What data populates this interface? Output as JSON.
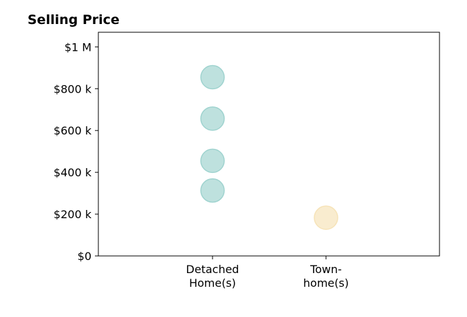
{
  "chart_data": {
    "type": "scatter",
    "title": "Selling Price",
    "xlabel": "",
    "ylabel": "",
    "categories": [
      "Detached Home(s)",
      "Town- home(s)"
    ],
    "category_lines": [
      [
        "Detached",
        "Home(s)"
      ],
      [
        "Town-",
        "home(s)"
      ]
    ],
    "ylim": [
      0,
      1070000
    ],
    "yticks": [
      {
        "value": 0,
        "label": "$0"
      },
      {
        "value": 200000,
        "label": "$200 k"
      },
      {
        "value": 400000,
        "label": "$400 k"
      },
      {
        "value": 600000,
        "label": "$600 k"
      },
      {
        "value": 800000,
        "label": "$800 k"
      },
      {
        "value": 1000000,
        "label": "$1 M"
      }
    ],
    "grid": false,
    "series": [
      {
        "category": "Detached Home(s)",
        "color": "#9fd3cf",
        "values": [
          313000,
          455000,
          657000,
          855000
        ]
      },
      {
        "category": "Town- home(s)",
        "color": "#f6e3b8",
        "values": [
          183000
        ]
      }
    ]
  }
}
